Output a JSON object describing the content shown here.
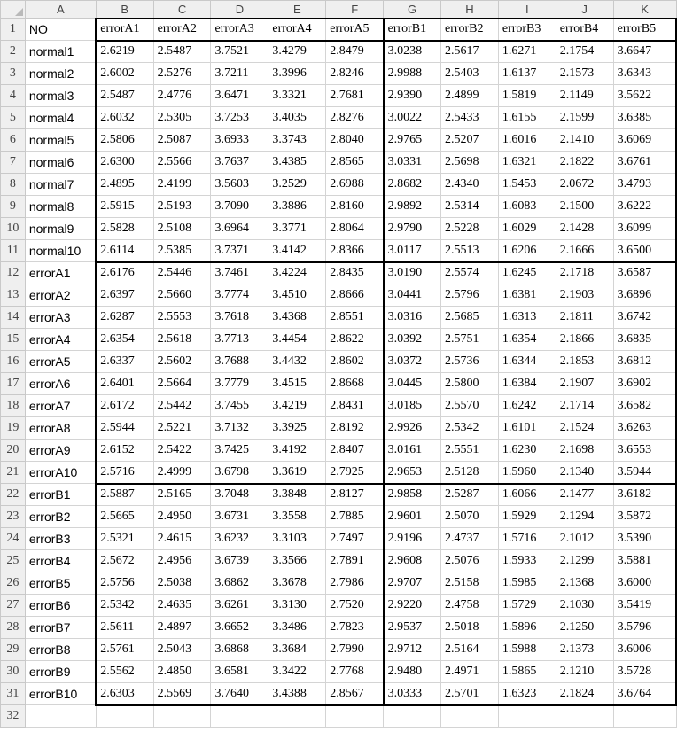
{
  "columns": [
    "A",
    "B",
    "C",
    "D",
    "E",
    "F",
    "G",
    "H",
    "I",
    "J",
    "K"
  ],
  "header_row": [
    "NO",
    "errorA1",
    "errorA2",
    "errorA3",
    "errorA4",
    "errorA5",
    "errorB1",
    "errorB2",
    "errorB3",
    "errorB4",
    "errorB5"
  ],
  "rows": [
    [
      "normal1",
      "2.6219",
      "2.5487",
      "3.7521",
      "3.4279",
      "2.8479",
      "3.0238",
      "2.5617",
      "1.6271",
      "2.1754",
      "3.6647"
    ],
    [
      "normal2",
      "2.6002",
      "2.5276",
      "3.7211",
      "3.3996",
      "2.8246",
      "2.9988",
      "2.5403",
      "1.6137",
      "2.1573",
      "3.6343"
    ],
    [
      "normal3",
      "2.5487",
      "2.4776",
      "3.6471",
      "3.3321",
      "2.7681",
      "2.9390",
      "2.4899",
      "1.5819",
      "2.1149",
      "3.5622"
    ],
    [
      "normal4",
      "2.6032",
      "2.5305",
      "3.7253",
      "3.4035",
      "2.8276",
      "3.0022",
      "2.5433",
      "1.6155",
      "2.1599",
      "3.6385"
    ],
    [
      "normal5",
      "2.5806",
      "2.5087",
      "3.6933",
      "3.3743",
      "2.8040",
      "2.9765",
      "2.5207",
      "1.6016",
      "2.1410",
      "3.6069"
    ],
    [
      "normal6",
      "2.6300",
      "2.5566",
      "3.7637",
      "3.4385",
      "2.8565",
      "3.0331",
      "2.5698",
      "1.6321",
      "2.1822",
      "3.6761"
    ],
    [
      "normal7",
      "2.4895",
      "2.4199",
      "3.5603",
      "3.2529",
      "2.6988",
      "2.8682",
      "2.4340",
      "1.5453",
      "2.0672",
      "3.4793"
    ],
    [
      "normal8",
      "2.5915",
      "2.5193",
      "3.7090",
      "3.3886",
      "2.8160",
      "2.9892",
      "2.5314",
      "1.6083",
      "2.1500",
      "3.6222"
    ],
    [
      "normal9",
      "2.5828",
      "2.5108",
      "3.6964",
      "3.3771",
      "2.8064",
      "2.9790",
      "2.5228",
      "1.6029",
      "2.1428",
      "3.6099"
    ],
    [
      "normal10",
      "2.6114",
      "2.5385",
      "3.7371",
      "3.4142",
      "2.8366",
      "3.0117",
      "2.5513",
      "1.6206",
      "2.1666",
      "3.6500"
    ],
    [
      "errorA1",
      "2.6176",
      "2.5446",
      "3.7461",
      "3.4224",
      "2.8435",
      "3.0190",
      "2.5574",
      "1.6245",
      "2.1718",
      "3.6587"
    ],
    [
      "errorA2",
      "2.6397",
      "2.5660",
      "3.7774",
      "3.4510",
      "2.8666",
      "3.0441",
      "2.5796",
      "1.6381",
      "2.1903",
      "3.6896"
    ],
    [
      "errorA3",
      "2.6287",
      "2.5553",
      "3.7618",
      "3.4368",
      "2.8551",
      "3.0316",
      "2.5685",
      "1.6313",
      "2.1811",
      "3.6742"
    ],
    [
      "errorA4",
      "2.6354",
      "2.5618",
      "3.7713",
      "3.4454",
      "2.8622",
      "3.0392",
      "2.5751",
      "1.6354",
      "2.1866",
      "3.6835"
    ],
    [
      "errorA5",
      "2.6337",
      "2.5602",
      "3.7688",
      "3.4432",
      "2.8602",
      "3.0372",
      "2.5736",
      "1.6344",
      "2.1853",
      "3.6812"
    ],
    [
      "errorA6",
      "2.6401",
      "2.5664",
      "3.7779",
      "3.4515",
      "2.8668",
      "3.0445",
      "2.5800",
      "1.6384",
      "2.1907",
      "3.6902"
    ],
    [
      "errorA7",
      "2.6172",
      "2.5442",
      "3.7455",
      "3.4219",
      "2.8431",
      "3.0185",
      "2.5570",
      "1.6242",
      "2.1714",
      "3.6582"
    ],
    [
      "errorA8",
      "2.5944",
      "2.5221",
      "3.7132",
      "3.3925",
      "2.8192",
      "2.9926",
      "2.5342",
      "1.6101",
      "2.1524",
      "3.6263"
    ],
    [
      "errorA9",
      "2.6152",
      "2.5422",
      "3.7425",
      "3.4192",
      "2.8407",
      "3.0161",
      "2.5551",
      "1.6230",
      "2.1698",
      "3.6553"
    ],
    [
      "errorA10",
      "2.5716",
      "2.4999",
      "3.6798",
      "3.3619",
      "2.7925",
      "2.9653",
      "2.5128",
      "1.5960",
      "2.1340",
      "3.5944"
    ],
    [
      "errorB1",
      "2.5887",
      "2.5165",
      "3.7048",
      "3.3848",
      "2.8127",
      "2.9858",
      "2.5287",
      "1.6066",
      "2.1477",
      "3.6182"
    ],
    [
      "errorB2",
      "2.5665",
      "2.4950",
      "3.6731",
      "3.3558",
      "2.7885",
      "2.9601",
      "2.5070",
      "1.5929",
      "2.1294",
      "3.5872"
    ],
    [
      "errorB3",
      "2.5321",
      "2.4615",
      "3.6232",
      "3.3103",
      "2.7497",
      "2.9196",
      "2.4737",
      "1.5716",
      "2.1012",
      "3.5390"
    ],
    [
      "errorB4",
      "2.5672",
      "2.4956",
      "3.6739",
      "3.3566",
      "2.7891",
      "2.9608",
      "2.5076",
      "1.5933",
      "2.1299",
      "3.5881"
    ],
    [
      "errorB5",
      "2.5756",
      "2.5038",
      "3.6862",
      "3.3678",
      "2.7986",
      "2.9707",
      "2.5158",
      "1.5985",
      "2.1368",
      "3.6000"
    ],
    [
      "errorB6",
      "2.5342",
      "2.4635",
      "3.6261",
      "3.3130",
      "2.7520",
      "2.9220",
      "2.4758",
      "1.5729",
      "2.1030",
      "3.5419"
    ],
    [
      "errorB7",
      "2.5611",
      "2.4897",
      "3.6652",
      "3.3486",
      "2.7823",
      "2.9537",
      "2.5018",
      "1.5896",
      "2.1250",
      "3.5796"
    ],
    [
      "errorB8",
      "2.5761",
      "2.5043",
      "3.6868",
      "3.3684",
      "2.7990",
      "2.9712",
      "2.5164",
      "1.5988",
      "2.1373",
      "3.6006"
    ],
    [
      "errorB9",
      "2.5562",
      "2.4850",
      "3.6581",
      "3.3422",
      "2.7768",
      "2.9480",
      "2.4971",
      "1.5865",
      "2.1210",
      "3.5728"
    ],
    [
      "errorB10",
      "2.6303",
      "2.5569",
      "3.7640",
      "3.4388",
      "2.8567",
      "3.0333",
      "2.5701",
      "1.6323",
      "2.1824",
      "3.6764"
    ]
  ],
  "row_numbers": [
    "1",
    "2",
    "3",
    "4",
    "5",
    "6",
    "7",
    "8",
    "9",
    "10",
    "11",
    "12",
    "13",
    "14",
    "15",
    "16",
    "17",
    "18",
    "19",
    "20",
    "21",
    "22",
    "23",
    "24",
    "25",
    "26",
    "27",
    "28",
    "29",
    "30",
    "31",
    "32"
  ]
}
